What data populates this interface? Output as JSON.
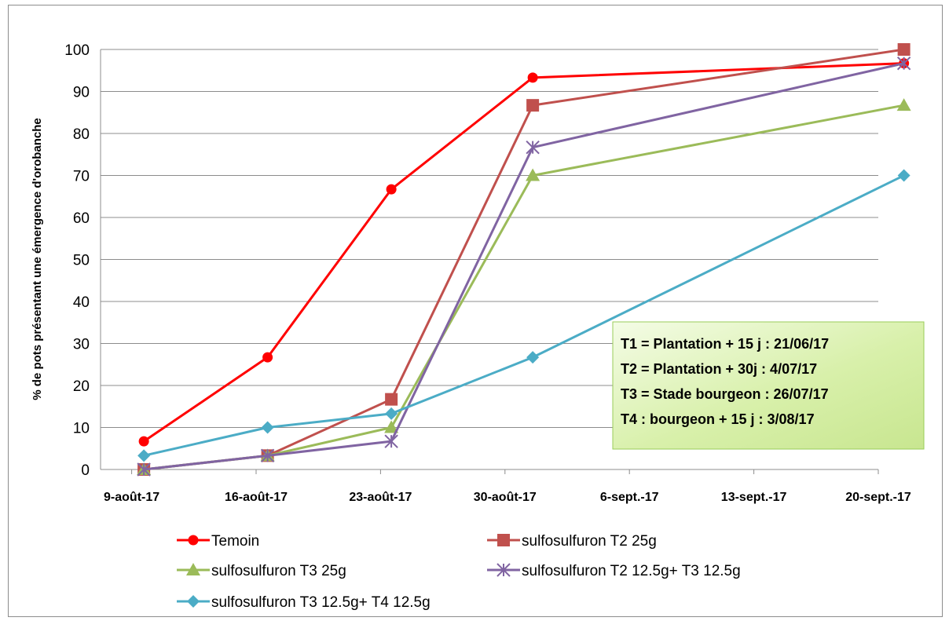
{
  "chart_data": {
    "type": "line",
    "title": "",
    "xlabel": "",
    "ylabel": "% de pots présentant une émergence d'orobanche",
    "ylim": [
      0,
      100
    ],
    "yticks": [
      "0",
      "10",
      "20",
      "30",
      "40",
      "50",
      "60",
      "70",
      "80",
      "90",
      "100"
    ],
    "xticks": [
      "9-août-17",
      "16-août-17",
      "23-août-17",
      "30-août-17",
      "6-sept.-17",
      "13-sept.-17",
      "20-sept.-17"
    ],
    "grid": true,
    "legend_position": "bottom",
    "series": [
      {
        "name": "Temoin",
        "color": "#ff0000",
        "marker": "circle",
        "x": [
          "2017-08-09",
          "2017-08-16",
          "2017-08-23",
          "2017-08-31",
          "2017-09-21"
        ],
        "y": [
          6.7,
          26.7,
          66.7,
          93.3,
          96.7
        ]
      },
      {
        "name": "sulfosulfuron T2 25g",
        "color": "#c0504d",
        "marker": "square",
        "x": [
          "2017-08-09",
          "2017-08-16",
          "2017-08-23",
          "2017-08-31",
          "2017-09-21"
        ],
        "y": [
          0,
          3.3,
          16.7,
          86.7,
          100
        ]
      },
      {
        "name": "sulfosulfuron T3 25g",
        "color": "#9bbb59",
        "marker": "triangle",
        "x": [
          "2017-08-09",
          "2017-08-16",
          "2017-08-23",
          "2017-08-31",
          "2017-09-21"
        ],
        "y": [
          0,
          3.3,
          10,
          70,
          86.7
        ]
      },
      {
        "name": "sulfosulfuron T2 12.5g+ T3 12.5g",
        "color": "#8064a2",
        "marker": "star",
        "x": [
          "2017-08-09",
          "2017-08-16",
          "2017-08-23",
          "2017-08-31",
          "2017-09-21"
        ],
        "y": [
          0,
          3.3,
          6.7,
          76.7,
          96.7
        ]
      },
      {
        "name": "sulfosulfuron T3 12.5g+ T4 12.5g",
        "color": "#4bacc6",
        "marker": "diamond",
        "x": [
          "2017-08-09",
          "2017-08-16",
          "2017-08-23",
          "2017-08-31",
          "2017-09-21"
        ],
        "y": [
          3.3,
          10,
          13.3,
          26.7,
          70
        ]
      }
    ],
    "annotation": {
      "lines": [
        "T1 = Plantation + 15 j : 21/06/17",
        "T2 = Plantation + 30j : 4/07/17",
        "T3 = Stade bourgeon  : 26/07/17",
        "T4 : bourgeon + 15 j : 3/08/17"
      ],
      "fill": "#d7f0a8"
    }
  }
}
